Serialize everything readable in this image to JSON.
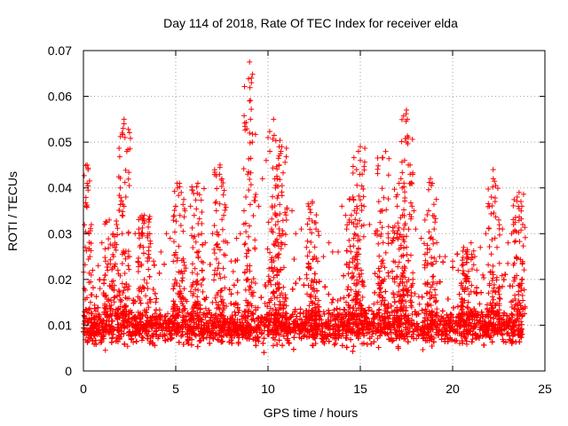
{
  "chart_data": {
    "type": "scatter",
    "title": "Day 114 of 2018, Rate Of TEC Index for receiver elda",
    "xlabel": "GPS time / hours",
    "ylabel": "ROTI / TECUs",
    "xlim": [
      0,
      25
    ],
    "ylim": [
      0,
      0.07
    ],
    "xticks": [
      0,
      5,
      10,
      15,
      20,
      25
    ],
    "xtick_labels": [
      "0",
      "5",
      "10",
      "15",
      "20",
      "25"
    ],
    "yticks": [
      0,
      0.01,
      0.02,
      0.03,
      0.04,
      0.05,
      0.06,
      0.07
    ],
    "ytick_labels": [
      "0",
      "0.01",
      "0.02",
      "0.03",
      "0.04",
      "0.05",
      "0.06",
      "0.07"
    ],
    "grid": true,
    "marker": "+",
    "color": "#ff0000",
    "series": [
      {
        "name": "ROTI",
        "points": [
          [
            0.05,
            0.018
          ],
          [
            0.1,
            0.027
          ],
          [
            0.15,
            0.036
          ],
          [
            0.2,
            0.045
          ],
          [
            0.25,
            0.044
          ],
          [
            0.2,
            0.041
          ],
          [
            0.3,
            0.03
          ],
          [
            0.35,
            0.025
          ],
          [
            0.5,
            0.022
          ],
          [
            0.8,
            0.023
          ],
          [
            1.0,
            0.028
          ],
          [
            1.2,
            0.024
          ],
          [
            1.4,
            0.033
          ],
          [
            1.6,
            0.03
          ],
          [
            1.7,
            0.027
          ],
          [
            1.8,
            0.032
          ],
          [
            2.0,
            0.04
          ],
          [
            2.1,
            0.034
          ],
          [
            2.2,
            0.036
          ],
          [
            2.1,
            0.03
          ],
          [
            2.3,
            0.038
          ],
          [
            2.1,
            0.052
          ],
          [
            2.15,
            0.053
          ],
          [
            2.2,
            0.054
          ],
          [
            2.2,
            0.055
          ],
          [
            2.25,
            0.051
          ],
          [
            2.5,
            0.025
          ],
          [
            2.8,
            0.03
          ],
          [
            3.0,
            0.031
          ],
          [
            3.2,
            0.033
          ],
          [
            3.3,
            0.034
          ],
          [
            3.5,
            0.03
          ],
          [
            3.8,
            0.024
          ],
          [
            4.2,
            0.026
          ],
          [
            4.5,
            0.03
          ],
          [
            4.7,
            0.029
          ],
          [
            5.0,
            0.036
          ],
          [
            5.1,
            0.04
          ],
          [
            5.2,
            0.041
          ],
          [
            5.3,
            0.039
          ],
          [
            5.5,
            0.035
          ],
          [
            5.8,
            0.036
          ],
          [
            6.0,
            0.034
          ],
          [
            6.2,
            0.041
          ],
          [
            6.4,
            0.03
          ],
          [
            6.6,
            0.028
          ],
          [
            7.0,
            0.03
          ],
          [
            7.2,
            0.035
          ],
          [
            7.4,
            0.045
          ],
          [
            7.5,
            0.042
          ],
          [
            7.6,
            0.034
          ],
          [
            7.8,
            0.028
          ],
          [
            8.0,
            0.024
          ],
          [
            8.3,
            0.029
          ],
          [
            8.5,
            0.03
          ],
          [
            8.7,
            0.035
          ],
          [
            8.8,
            0.038
          ],
          [
            8.9,
            0.043
          ],
          [
            9.0,
            0.052
          ],
          [
            9.05,
            0.055
          ],
          [
            9.0,
            0.059
          ],
          [
            9.1,
            0.063
          ],
          [
            9.1,
            0.064
          ],
          [
            9.0,
            0.0675
          ],
          [
            9.15,
            0.05
          ],
          [
            9.3,
            0.038
          ],
          [
            9.5,
            0.036
          ],
          [
            9.7,
            0.042
          ],
          [
            9.9,
            0.046
          ],
          [
            10.0,
            0.051
          ],
          [
            10.1,
            0.048
          ],
          [
            10.3,
            0.055
          ],
          [
            10.4,
            0.04
          ],
          [
            10.5,
            0.042
          ],
          [
            10.6,
            0.047
          ],
          [
            10.7,
            0.048
          ],
          [
            10.75,
            0.049
          ],
          [
            10.6,
            0.045
          ],
          [
            11.0,
            0.033
          ],
          [
            11.3,
            0.035
          ],
          [
            11.5,
            0.03
          ],
          [
            11.8,
            0.031
          ],
          [
            12.2,
            0.036
          ],
          [
            12.4,
            0.037
          ],
          [
            12.6,
            0.031
          ],
          [
            13.0,
            0.025
          ],
          [
            13.3,
            0.028
          ],
          [
            13.5,
            0.026
          ],
          [
            13.8,
            0.026
          ],
          [
            14.0,
            0.036
          ],
          [
            14.2,
            0.034
          ],
          [
            14.4,
            0.033
          ],
          [
            14.6,
            0.038
          ],
          [
            14.8,
            0.044
          ],
          [
            14.9,
            0.048
          ],
          [
            15.0,
            0.049
          ],
          [
            15.0,
            0.046
          ],
          [
            15.1,
            0.043
          ],
          [
            15.2,
            0.036
          ],
          [
            15.5,
            0.032
          ],
          [
            15.8,
            0.03
          ],
          [
            16.0,
            0.037
          ],
          [
            16.2,
            0.035
          ],
          [
            16.5,
            0.03
          ],
          [
            16.7,
            0.028
          ],
          [
            16.8,
            0.029
          ],
          [
            17.0,
            0.036
          ],
          [
            17.1,
            0.041
          ],
          [
            17.2,
            0.042
          ],
          [
            17.4,
            0.046
          ],
          [
            17.5,
            0.05
          ],
          [
            17.6,
            0.051
          ],
          [
            17.55,
            0.055
          ],
          [
            17.5,
            0.057
          ],
          [
            17.6,
            0.045
          ],
          [
            17.7,
            0.043
          ],
          [
            17.8,
            0.036
          ],
          [
            17.9,
            0.035
          ],
          [
            18.0,
            0.031
          ],
          [
            18.3,
            0.029
          ],
          [
            18.5,
            0.033
          ],
          [
            18.7,
            0.035
          ],
          [
            18.8,
            0.042
          ],
          [
            18.9,
            0.041
          ],
          [
            19.0,
            0.031
          ],
          [
            19.3,
            0.025
          ],
          [
            19.6,
            0.025
          ],
          [
            20.0,
            0.024
          ],
          [
            20.3,
            0.022
          ],
          [
            20.6,
            0.027
          ],
          [
            20.8,
            0.026
          ],
          [
            21.0,
            0.028
          ],
          [
            21.2,
            0.025
          ],
          [
            21.5,
            0.027
          ],
          [
            21.8,
            0.03
          ],
          [
            22.0,
            0.036
          ],
          [
            22.1,
            0.038
          ],
          [
            22.2,
            0.042
          ],
          [
            22.2,
            0.044
          ],
          [
            22.3,
            0.037
          ],
          [
            22.5,
            0.033
          ],
          [
            22.7,
            0.031
          ],
          [
            23.0,
            0.028
          ],
          [
            23.2,
            0.03
          ],
          [
            23.3,
            0.032
          ],
          [
            23.5,
            0.038
          ],
          [
            23.6,
            0.039
          ],
          [
            23.7,
            0.037
          ],
          [
            23.75,
            0.036
          ],
          [
            23.8,
            0.032
          ]
        ]
      }
    ],
    "dense_band": {
      "x_range": [
        0,
        23.8
      ],
      "y_base": 0.0095,
      "y_spread": 0.0045,
      "y_floor": 0.002,
      "spike_bursts": [
        {
          "x": 0.1,
          "y_max": 0.045
        },
        {
          "x": 1.5,
          "y_max": 0.033
        },
        {
          "x": 2.2,
          "y_max": 0.055
        },
        {
          "x": 3.3,
          "y_max": 0.034
        },
        {
          "x": 5.2,
          "y_max": 0.041
        },
        {
          "x": 6.2,
          "y_max": 0.041
        },
        {
          "x": 7.4,
          "y_max": 0.045
        },
        {
          "x": 9.0,
          "y_max": 0.0675
        },
        {
          "x": 10.3,
          "y_max": 0.055
        },
        {
          "x": 10.7,
          "y_max": 0.049
        },
        {
          "x": 12.4,
          "y_max": 0.037
        },
        {
          "x": 14.6,
          "y_max": 0.038
        },
        {
          "x": 14.9,
          "y_max": 0.049
        },
        {
          "x": 16.2,
          "y_max": 0.048
        },
        {
          "x": 17.1,
          "y_max": 0.042
        },
        {
          "x": 17.5,
          "y_max": 0.057
        },
        {
          "x": 18.8,
          "y_max": 0.042
        },
        {
          "x": 20.8,
          "y_max": 0.027
        },
        {
          "x": 22.2,
          "y_max": 0.044
        },
        {
          "x": 23.6,
          "y_max": 0.039
        }
      ]
    }
  }
}
